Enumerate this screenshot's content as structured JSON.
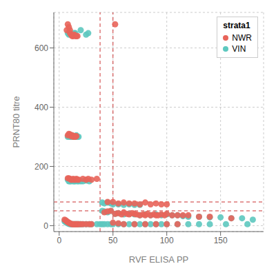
{
  "chart_data": {
    "type": "scatter",
    "xlabel": "RVF ELISA PP",
    "ylabel": "PRNT80 titre",
    "xlim": [
      -5,
      190
    ],
    "ylim": [
      -20,
      720
    ],
    "xticks": [
      0,
      50,
      100,
      150
    ],
    "yticks": [
      0,
      200,
      400,
      600
    ],
    "grid": true,
    "legend": "upper right",
    "legend_title": "strata1",
    "series": [
      {
        "name": "NWR",
        "color": "#E8645A",
        "marker": "circle",
        "x": [
          7,
          8,
          9,
          10,
          10,
          11,
          12,
          13,
          14,
          15,
          16,
          17,
          52,
          8,
          9,
          10,
          11,
          12,
          13,
          14,
          15,
          16,
          17,
          18,
          22,
          25,
          27,
          30,
          35,
          8,
          9,
          10,
          11,
          12,
          13,
          14,
          15,
          16,
          42,
          45,
          48,
          52,
          55,
          58,
          60,
          63,
          65,
          68,
          70,
          72,
          75,
          78,
          80,
          82,
          85,
          88,
          90,
          92,
          95,
          98,
          100,
          105,
          110,
          115,
          120,
          130,
          140,
          160,
          45,
          50,
          55,
          60,
          65,
          70,
          75,
          80,
          85,
          90,
          95,
          100,
          5,
          6,
          7,
          8,
          9,
          10,
          11,
          12,
          13,
          14,
          15,
          16,
          17,
          18,
          20,
          22,
          25,
          28,
          30,
          50,
          55,
          60,
          70,
          80,
          90,
          100,
          110
        ],
        "y": [
          660,
          680,
          670,
          650,
          660,
          645,
          640,
          640,
          645,
          640,
          640,
          640,
          680,
          160,
          160,
          158,
          155,
          155,
          158,
          155,
          155,
          158,
          155,
          155,
          158,
          155,
          158,
          155,
          158,
          305,
          310,
          308,
          302,
          305,
          300,
          303,
          300,
          302,
          45,
          48,
          50,
          40,
          42,
          38,
          45,
          40,
          38,
          42,
          40,
          38,
          35,
          38,
          35,
          40,
          35,
          38,
          35,
          35,
          38,
          35,
          40,
          35,
          35,
          35,
          35,
          30,
          30,
          25,
          80,
          80,
          75,
          78,
          75,
          75,
          72,
          78,
          72,
          75,
          72,
          72,
          20,
          18,
          15,
          12,
          10,
          8,
          6,
          5,
          5,
          5,
          5,
          5,
          5,
          5,
          5,
          5,
          5,
          5,
          5,
          10,
          8,
          5,
          5,
          5,
          5,
          5,
          5
        ]
      },
      {
        "name": "VIN",
        "color": "#5DC8BF",
        "marker": "circle",
        "x": [
          8,
          9,
          10,
          11,
          12,
          14,
          15,
          20,
          25,
          27,
          8,
          9,
          10,
          11,
          12,
          13,
          14,
          15,
          16,
          17,
          18,
          20,
          22,
          25,
          28,
          8,
          9,
          10,
          11,
          12,
          13,
          14,
          15,
          16,
          17,
          18,
          40,
          42,
          45,
          48,
          52,
          55,
          60,
          65,
          70,
          75,
          80,
          85,
          90,
          95,
          100,
          105,
          110,
          115,
          120,
          130,
          140,
          150,
          160,
          170,
          180,
          40,
          42,
          45,
          48,
          50,
          55,
          60,
          65,
          70,
          75,
          5,
          6,
          7,
          8,
          9,
          10,
          11,
          12,
          13,
          14,
          15,
          16,
          17,
          18,
          19,
          20,
          22,
          25,
          28,
          30,
          35,
          38,
          40,
          42,
          45,
          48,
          50,
          55,
          60,
          65,
          70,
          75,
          80,
          85,
          90,
          95,
          100,
          110,
          120,
          130,
          140,
          155,
          175
        ],
        "y": [
          650,
          645,
          650,
          645,
          645,
          650,
          650,
          660,
          645,
          650,
          155,
          150,
          150,
          150,
          152,
          150,
          150,
          150,
          152,
          150,
          150,
          150,
          150,
          152,
          150,
          300,
          305,
          300,
          300,
          305,
          300,
          300,
          300,
          305,
          300,
          300,
          50,
          48,
          45,
          50,
          40,
          42,
          38,
          40,
          38,
          35,
          38,
          35,
          38,
          35,
          38,
          35,
          35,
          32,
          30,
          30,
          28,
          28,
          25,
          25,
          20,
          78,
          75,
          78,
          75,
          72,
          72,
          70,
          72,
          70,
          70,
          15,
          12,
          10,
          8,
          6,
          5,
          5,
          5,
          5,
          5,
          5,
          5,
          5,
          5,
          5,
          5,
          5,
          5,
          5,
          5,
          5,
          5,
          5,
          5,
          5,
          5,
          5,
          5,
          5,
          5,
          5,
          5,
          5,
          5,
          5,
          5,
          5,
          5,
          5,
          5,
          5,
          5,
          5
        ]
      }
    ],
    "reference_lines": [
      {
        "x": 38,
        "color": "#cc3333",
        "line_style": "dashed"
      },
      {
        "x": 50,
        "color": "#cc3333",
        "line_style": "dashed"
      },
      {
        "y": 50,
        "color": "#cc3333",
        "line_style": "dashed"
      },
      {
        "y": 80,
        "color": "#cc3333",
        "line_style": "dashed"
      }
    ]
  }
}
